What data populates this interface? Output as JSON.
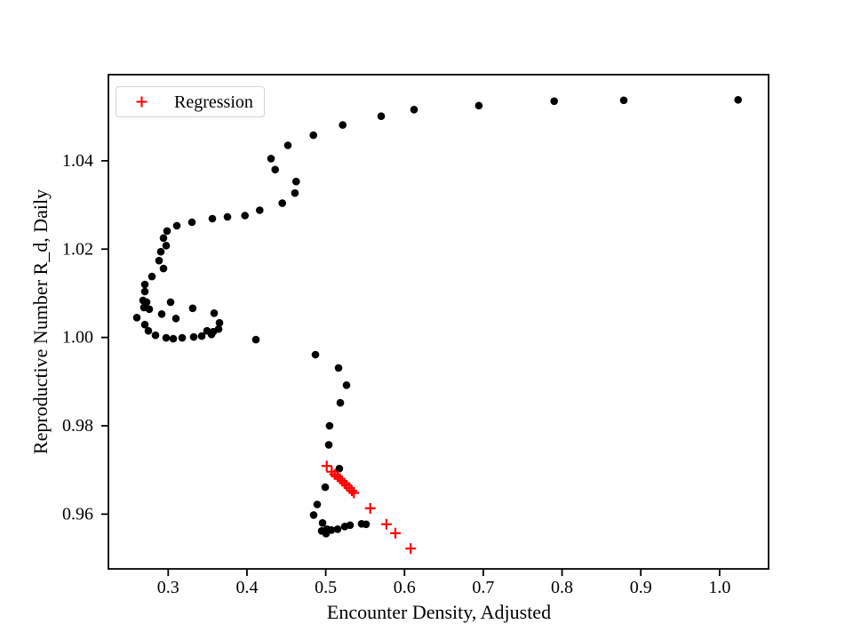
{
  "figure": {
    "background_color": "#ffffff",
    "spine_color": "#000000",
    "legend_border_color": "#d4d4d4",
    "text_color": "#000000"
  },
  "chart_data": {
    "type": "scatter",
    "title": "",
    "xlabel": "Encounter Density, Adjusted",
    "ylabel": "Reproductive Number R_d, Daily",
    "xlim": [
      0.2241,
      1.0622
    ],
    "ylim": [
      0.9476,
      1.0595
    ],
    "grid": false,
    "xticks": {
      "values": [
        0.3,
        0.4,
        0.5,
        0.6,
        0.7,
        0.8,
        0.9,
        1.0
      ],
      "labels": [
        "0.3",
        "0.4",
        "0.5",
        "0.6",
        "0.7",
        "0.8",
        "0.9",
        "1.0"
      ]
    },
    "yticks": {
      "values": [
        0.96,
        0.98,
        1.0,
        1.02,
        1.04
      ],
      "labels": [
        "0.96",
        "0.98",
        "1.00",
        "1.02",
        "1.04"
      ]
    },
    "legend": {
      "visible": true,
      "position": "upper left",
      "label": "Regression",
      "marker": "plus",
      "marker_color": "#ff0000"
    },
    "series": [
      {
        "name": "trajectory",
        "marker": "circle",
        "color": "#000000",
        "marker_radius": 4.3,
        "points": [
          [
            1.0235,
            1.0538
          ],
          [
            0.8783,
            1.0537
          ],
          [
            0.79,
            1.0535
          ],
          [
            0.6944,
            1.0525
          ],
          [
            0.6121,
            1.0516
          ],
          [
            0.5704,
            1.0501
          ],
          [
            0.5215,
            1.0481
          ],
          [
            0.4843,
            1.0458
          ],
          [
            0.4519,
            1.0435
          ],
          [
            0.4305,
            1.0405
          ],
          [
            0.4358,
            1.038
          ],
          [
            0.4624,
            1.0353
          ],
          [
            0.4609,
            1.0327
          ],
          [
            0.4448,
            1.0304
          ],
          [
            0.4162,
            1.0288
          ],
          [
            0.3975,
            1.0276
          ],
          [
            0.3753,
            1.0273
          ],
          [
            0.3561,
            1.0269
          ],
          [
            0.3301,
            1.0261
          ],
          [
            0.311,
            1.0253
          ],
          [
            0.2986,
            1.0241
          ],
          [
            0.294,
            1.0225
          ],
          [
            0.2974,
            1.0208
          ],
          [
            0.2907,
            1.0194
          ],
          [
            0.2884,
            1.0174
          ],
          [
            0.294,
            1.0156
          ],
          [
            0.2794,
            1.0138
          ],
          [
            0.2704,
            1.012
          ],
          [
            0.2704,
            1.0104
          ],
          [
            0.2681,
            1.0084
          ],
          [
            0.2726,
            1.008
          ],
          [
            0.2692,
            1.0068
          ],
          [
            0.276,
            1.0064
          ],
          [
            0.2602,
            1.0045
          ],
          [
            0.2704,
            1.0029
          ],
          [
            0.2749,
            1.0015
          ],
          [
            0.2839,
            1.0005
          ],
          [
            0.2974,
            0.9999
          ],
          [
            0.3064,
            0.9997
          ],
          [
            0.3177,
            0.9999
          ],
          [
            0.3324,
            1.0001
          ],
          [
            0.3425,
            1.0003
          ],
          [
            0.3549,
            1.0007
          ],
          [
            0.3493,
            1.0015
          ],
          [
            0.3572,
            1.0013
          ],
          [
            0.364,
            1.0019
          ],
          [
            0.3651,
            1.0033
          ],
          [
            0.3583,
            1.0055
          ],
          [
            0.3312,
            1.0066
          ],
          [
            0.3031,
            1.008
          ],
          [
            0.2918,
            1.0053
          ],
          [
            0.3098,
            1.0043
          ],
          [
            0.4113,
            0.9995
          ],
          [
            0.4869,
            0.9961
          ],
          [
            0.5162,
            0.9931
          ],
          [
            0.5264,
            0.9892
          ],
          [
            0.5185,
            0.9852
          ],
          [
            0.5049,
            0.98
          ],
          [
            0.5038,
            0.9757
          ],
          [
            0.5173,
            0.9703
          ],
          [
            0.4993,
            0.9661
          ],
          [
            0.4892,
            0.9622
          ],
          [
            0.4847,
            0.9598
          ],
          [
            0.4959,
            0.958
          ],
          [
            0.4948,
            0.9562
          ],
          [
            0.5005,
            0.9556
          ],
          [
            0.5016,
            0.9566
          ],
          [
            0.5072,
            0.9564
          ],
          [
            0.5151,
            0.9566
          ],
          [
            0.5241,
            0.9572
          ],
          [
            0.5309,
            0.9575
          ],
          [
            0.5455,
            0.9578
          ],
          [
            0.5512,
            0.9577
          ]
        ]
      },
      {
        "name": "Regression",
        "marker": "plus",
        "color": "#ff0000",
        "marker_half_arm": 6,
        "points": [
          [
            0.5012,
            0.9709
          ],
          [
            0.5076,
            0.9696
          ],
          [
            0.5114,
            0.969
          ],
          [
            0.5151,
            0.9685
          ],
          [
            0.5182,
            0.968
          ],
          [
            0.5208,
            0.9675
          ],
          [
            0.5238,
            0.967
          ],
          [
            0.5267,
            0.9665
          ],
          [
            0.5301,
            0.9659
          ],
          [
            0.5332,
            0.9653
          ],
          [
            0.5358,
            0.9648
          ],
          [
            0.5565,
            0.9613
          ],
          [
            0.5771,
            0.9577
          ],
          [
            0.5884,
            0.9557
          ],
          [
            0.6079,
            0.9522
          ]
        ]
      }
    ]
  }
}
